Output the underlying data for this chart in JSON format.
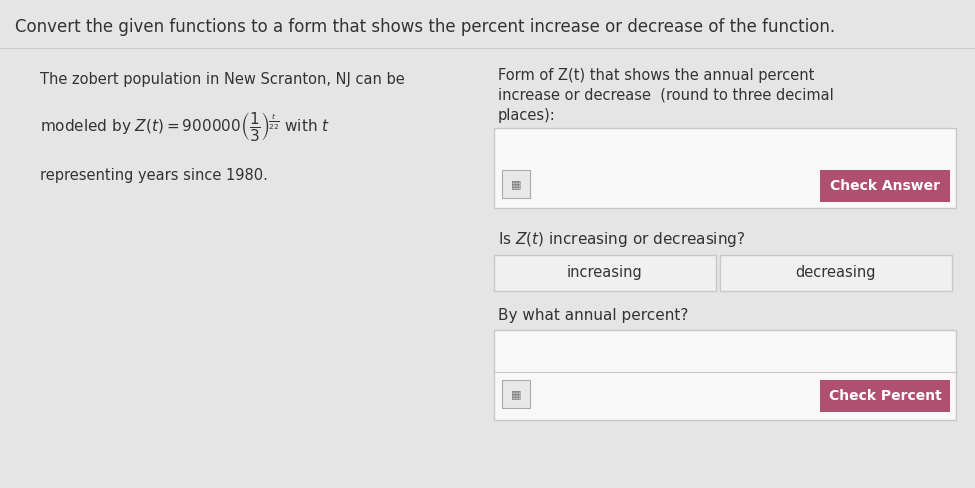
{
  "title": "Convert the given functions to a form that shows the percent increase or decrease of the function.",
  "title_fontsize": 12,
  "bg_color": "#e5e5e5",
  "title_bg": "#e5e5e5",
  "left_panel": {
    "line1": "The zobert population in New Scranton, NJ can be",
    "line2_math": "modeled by $Z(t) = 900000\\left(\\dfrac{1}{3}\\right)^{\\!\\frac{t}{22}}$ with $t$",
    "line3": "representing years since 1980."
  },
  "right_panel": {
    "header_line1": "Form of Z(t) that shows the annual percent",
    "header_line2": "increase or decrease  (round to three decimal",
    "header_line3": "places):",
    "check_answer_btn_color": "#b05070",
    "check_answer_btn_text": "Check Answer",
    "question": "Is $Z(t)$ increasing or decreasing?",
    "btn_increasing": "increasing",
    "btn_decreasing": "decreasing",
    "by_what": "By what annual percent?",
    "check_percent_btn_color": "#b05070",
    "check_percent_btn_text": "Check Percent"
  },
  "white_box_color": "#f8f8f8",
  "btn_face_color": "#f0f0f0",
  "box_border_color": "#c8c8c8",
  "text_color": "#333333",
  "fontsize_main": 11,
  "fontsize_btn": 10
}
